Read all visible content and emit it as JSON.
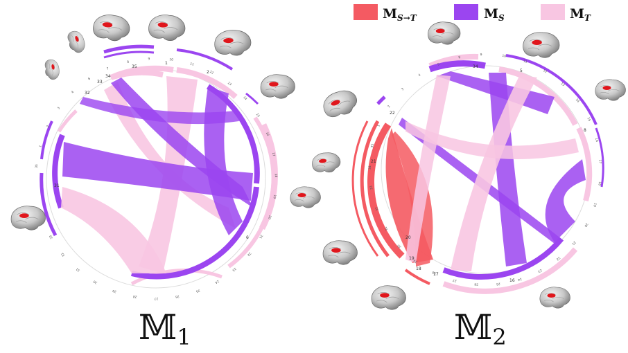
{
  "legend": [
    {
      "key": "M_S_to_T",
      "main": "M",
      "sub": "S→T",
      "color": "#f45a62"
    },
    {
      "key": "M_S",
      "main": "M",
      "sub": "S",
      "color": "#9b45f0"
    },
    {
      "key": "M_T",
      "main": "M",
      "sub": "T",
      "color": "#f8c6e2"
    }
  ],
  "diagrams": [
    {
      "label_main": "𝕄",
      "label_sub": "1",
      "region_labels": [
        "35",
        "1",
        "2",
        "3",
        "4",
        "6",
        "7",
        "8",
        "9",
        "10",
        "11",
        "12",
        "13",
        "14",
        "15",
        "16",
        "17",
        "18",
        "19",
        "20",
        "21",
        "22",
        "23",
        "24",
        "25",
        "26",
        "27",
        "28",
        "29",
        "30",
        "31",
        "32",
        "33",
        "34"
      ],
      "major_labels": [
        "35",
        "1",
        "2",
        "6",
        "31",
        "32",
        "33",
        "34"
      ]
    },
    {
      "label_main": "𝕄",
      "label_sub": "2",
      "region_labels": [
        "34",
        "35",
        "1",
        "2",
        "3",
        "4",
        "5",
        "8",
        "9",
        "10",
        "11",
        "12",
        "13",
        "14",
        "15",
        "16",
        "17",
        "18",
        "19",
        "20",
        "21",
        "22",
        "23",
        "24",
        "25",
        "26",
        "27",
        "28",
        "29",
        "30",
        "31",
        "32",
        "33"
      ],
      "major_labels": [
        "34",
        "5",
        "8",
        "16",
        "17",
        "18",
        "19",
        "20",
        "21",
        "22"
      ]
    }
  ],
  "brain_icons": [
    "brain-icon"
  ]
}
